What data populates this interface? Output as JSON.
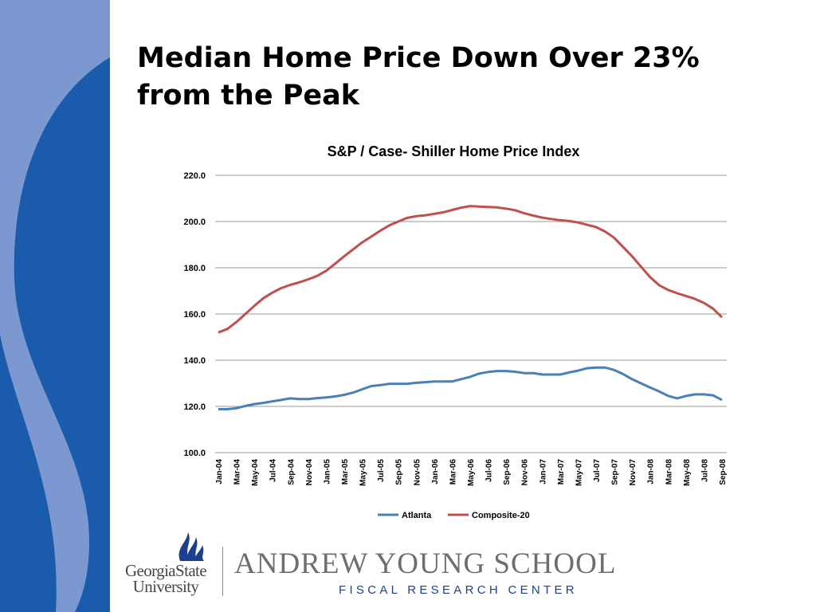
{
  "slide": {
    "title_lines": [
      "Median Home Price Down Over 23%",
      "from the Peak"
    ]
  },
  "colors": {
    "band_light": "#7b98d0",
    "band_dark": "#1a5cab",
    "atlanta": "#4a7fb8",
    "composite": "#c0504d",
    "gridline": "#9a9a9a",
    "school_text": "#6e6e6e",
    "center_text": "#1d3f8f"
  },
  "chart_data": {
    "type": "line",
    "title": "S&P / Case- Shiller Home Price Index",
    "xlabel": "",
    "ylabel": "",
    "ylim": [
      100,
      220
    ],
    "yticks": [
      "100.0",
      "120.0",
      "140.0",
      "160.0",
      "180.0",
      "200.0",
      "220.0"
    ],
    "grid": true,
    "legend_position": "bottom",
    "x": [
      "Jan-04",
      "Feb-04",
      "Mar-04",
      "Apr-04",
      "May-04",
      "Jun-04",
      "Jul-04",
      "Aug-04",
      "Sep-04",
      "Oct-04",
      "Nov-04",
      "Dec-04",
      "Jan-05",
      "Feb-05",
      "Mar-05",
      "Apr-05",
      "May-05",
      "Jun-05",
      "Jul-05",
      "Aug-05",
      "Sep-05",
      "Oct-05",
      "Nov-05",
      "Dec-05",
      "Jan-06",
      "Feb-06",
      "Mar-06",
      "Apr-06",
      "May-06",
      "Jun-06",
      "Jul-06",
      "Aug-06",
      "Sep-06",
      "Oct-06",
      "Nov-06",
      "Dec-06",
      "Jan-07",
      "Feb-07",
      "Mar-07",
      "Apr-07",
      "May-07",
      "Jun-07",
      "Jul-07",
      "Aug-07",
      "Sep-07",
      "Oct-07",
      "Nov-07",
      "Dec-07",
      "Jan-08",
      "Feb-08",
      "Mar-08",
      "Apr-08",
      "May-08",
      "Jun-08",
      "Jul-08",
      "Aug-08",
      "Sep-08"
    ],
    "x_tick_labels": [
      "Jan-04",
      "Mar-04",
      "May-04",
      "Jul-04",
      "Sep-04",
      "Nov-04",
      "Jan-05",
      "Mar-05",
      "May-05",
      "Jul-05",
      "Sep-05",
      "Nov-05",
      "Jan-06",
      "Mar-06",
      "May-06",
      "Jul-06",
      "Sep-06",
      "Nov-06",
      "Jan-07",
      "Mar-07",
      "May-07",
      "Jul-07",
      "Sep-07",
      "Nov-07",
      "Jan-08",
      "Mar-08",
      "May-08",
      "Jul-08",
      "Sep-08"
    ],
    "series": [
      {
        "name": "Atlanta",
        "values": [
          118.8,
          118.8,
          119.2,
          120.2,
          121.0,
          121.5,
          122.2,
          122.8,
          123.5,
          123.2,
          123.2,
          123.6,
          123.9,
          124.3,
          125.0,
          126.0,
          127.4,
          128.8,
          129.2,
          129.8,
          129.8,
          129.8,
          130.2,
          130.5,
          130.8,
          130.8,
          130.8,
          131.8,
          132.8,
          134.2,
          134.9,
          135.3,
          135.3,
          135.0,
          134.4,
          134.4,
          133.8,
          133.8,
          133.8,
          134.7,
          135.5,
          136.5,
          136.8,
          136.8,
          135.8,
          134.0,
          131.8,
          130.0,
          128.2,
          126.5,
          124.6,
          123.5,
          124.5,
          125.2,
          125.2,
          124.8,
          122.8
        ]
      },
      {
        "name": "Composite-20",
        "values": [
          152.0,
          153.5,
          156.5,
          160.0,
          163.5,
          166.8,
          169.2,
          171.2,
          172.6,
          173.7,
          175.0,
          176.5,
          178.7,
          181.8,
          185.0,
          188.0,
          191.0,
          193.5,
          196.0,
          198.3,
          200.0,
          201.6,
          202.3,
          202.7,
          203.3,
          204.0,
          205.0,
          206.0,
          206.7,
          206.5,
          206.3,
          206.1,
          205.6,
          204.9,
          203.6,
          202.6,
          201.7,
          201.1,
          200.6,
          200.2,
          199.6,
          198.6,
          197.6,
          195.7,
          193.0,
          189.0,
          185.0,
          180.5,
          176.0,
          172.5,
          170.4,
          169.0,
          167.8,
          166.5,
          164.8,
          162.3,
          158.6
        ]
      }
    ]
  },
  "footer": {
    "university_lines": [
      "GeorgiaState",
      "University"
    ],
    "school_name": "ANDREW YOUNG SCHOOL",
    "center_name": "FISCAL RESEARCH CENTER"
  }
}
